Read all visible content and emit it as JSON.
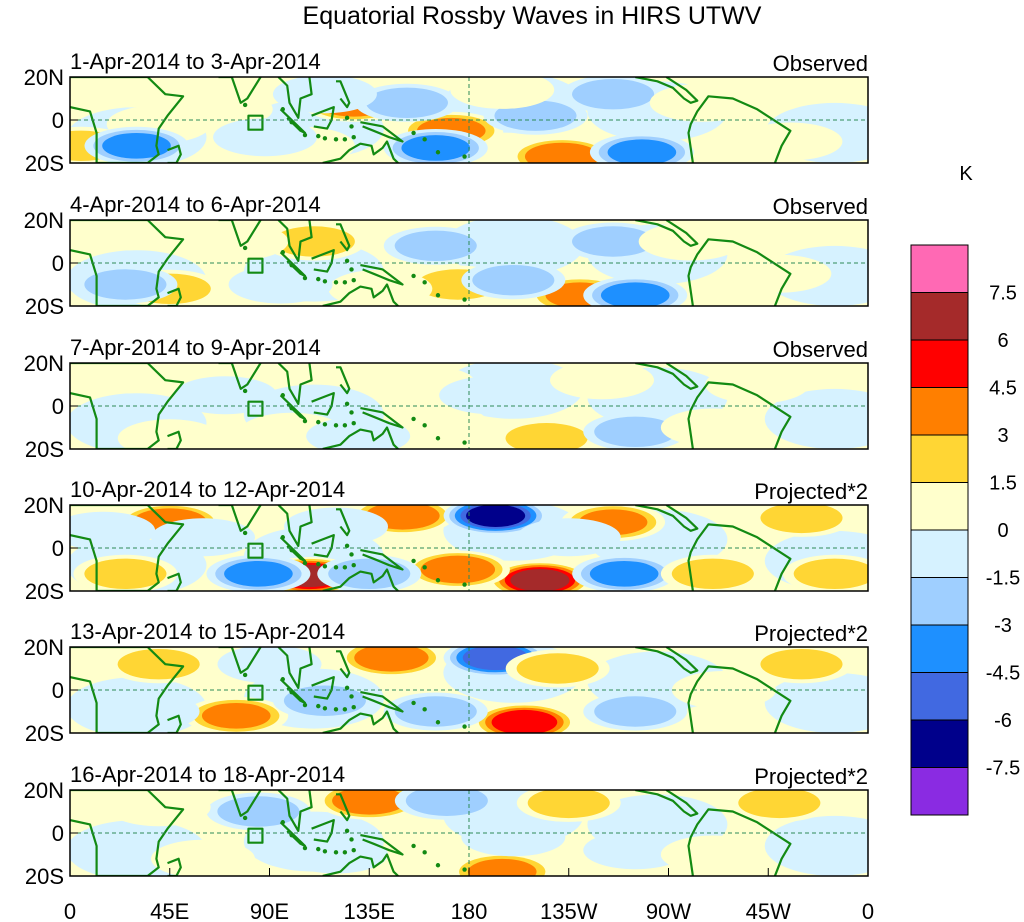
{
  "chart_data": {
    "type": "heatmap",
    "title": "Equatorial Rossby Waves in HIRS UTWV",
    "units": "K",
    "lat_ticks": [
      "20N",
      "0",
      "20S"
    ],
    "lon_ticks": [
      "0",
      "45E",
      "90E",
      "135E",
      "180",
      "135W",
      "90W",
      "45W",
      "0"
    ],
    "lon_range": [
      0,
      360
    ],
    "lat_range": [
      -20,
      20
    ],
    "colorbar": {
      "levels": [
        -7.5,
        -6,
        -4.5,
        -3,
        -1.5,
        0,
        1.5,
        3,
        4.5,
        6,
        7.5
      ],
      "tick_labels": [
        "7.5",
        "6",
        "4.5",
        "3",
        "1.5",
        "0",
        "-1.5",
        "-3",
        "-4.5",
        "-6",
        "-7.5"
      ],
      "colors": [
        "#8a2be2",
        "#00008b",
        "#4169e1",
        "#1e90ff",
        "#9fcfff",
        "#d6f2ff",
        "#ffffcc",
        "#ffd634",
        "#ff7f00",
        "#ff0000",
        "#a52a2a",
        "#ff69b4"
      ]
    },
    "panels": [
      {
        "date_range": "1-Apr-2014 to 3-Apr-2014",
        "kind": "Observed",
        "blobs": [
          {
            "lon": 128,
            "lat": 8,
            "v": 5
          },
          {
            "lon": 172,
            "lat": -5,
            "v": 4
          },
          {
            "lon": 222,
            "lat": -17,
            "v": 5
          },
          {
            "lon": 105,
            "lat": -12,
            "v": 2
          },
          {
            "lon": 40,
            "lat": -2,
            "v": 2
          },
          {
            "lon": 5,
            "lat": -12,
            "v": 3
          },
          {
            "lon": 152,
            "lat": 8,
            "v": -3
          },
          {
            "lon": 165,
            "lat": -13,
            "v": -4
          },
          {
            "lon": 245,
            "lat": 12,
            "v": -3
          },
          {
            "lon": 210,
            "lat": 2,
            "v": -3
          },
          {
            "lon": 30,
            "lat": -12,
            "v": -4
          },
          {
            "lon": 258,
            "lat": -15,
            "v": -4
          },
          {
            "lon": 195,
            "lat": 14,
            "v": 2
          },
          {
            "lon": 68,
            "lat": 5,
            "v": 2
          },
          {
            "lon": 325,
            "lat": -10,
            "v": 2
          },
          {
            "lon": 88,
            "lat": -8,
            "v": -2
          },
          {
            "lon": 115,
            "lat": 12,
            "v": -2
          },
          {
            "lon": 285,
            "lat": 8,
            "v": 2
          }
        ]
      },
      {
        "date_range": "4-Apr-2014 to 6-Apr-2014",
        "kind": "Observed",
        "blobs": [
          {
            "lon": 110,
            "lat": 10,
            "v": 3
          },
          {
            "lon": 175,
            "lat": -10,
            "v": 3
          },
          {
            "lon": 230,
            "lat": -15,
            "v": 4
          },
          {
            "lon": 165,
            "lat": 8,
            "v": -3
          },
          {
            "lon": 45,
            "lat": -12,
            "v": 3
          },
          {
            "lon": 25,
            "lat": -10,
            "v": -3
          },
          {
            "lon": 255,
            "lat": -15,
            "v": -4
          },
          {
            "lon": 245,
            "lat": 10,
            "v": -3
          },
          {
            "lon": 200,
            "lat": -8,
            "v": -3
          },
          {
            "lon": 140,
            "lat": -12,
            "v": 2
          },
          {
            "lon": 280,
            "lat": 10,
            "v": 2
          },
          {
            "lon": 75,
            "lat": 10,
            "v": 2
          },
          {
            "lon": 320,
            "lat": -5,
            "v": 2
          },
          {
            "lon": 95,
            "lat": -10,
            "v": -2
          }
        ]
      },
      {
        "date_range": "7-Apr-2014 to 9-Apr-2014",
        "kind": "Observed",
        "blobs": [
          {
            "lon": 100,
            "lat": -12,
            "v": 2
          },
          {
            "lon": 165,
            "lat": -8,
            "v": 2
          },
          {
            "lon": 215,
            "lat": -15,
            "v": 3
          },
          {
            "lon": 160,
            "lat": 10,
            "v": 2
          },
          {
            "lon": 190,
            "lat": 5,
            "v": -2
          },
          {
            "lon": 255,
            "lat": -12,
            "v": -3
          },
          {
            "lon": 45,
            "lat": -15,
            "v": 2
          },
          {
            "lon": 130,
            "lat": -14,
            "v": -2
          },
          {
            "lon": 240,
            "lat": 12,
            "v": 2
          },
          {
            "lon": 310,
            "lat": 10,
            "v": 2
          },
          {
            "lon": 70,
            "lat": 5,
            "v": -2
          },
          {
            "lon": 290,
            "lat": -10,
            "v": 2
          }
        ]
      },
      {
        "date_range": "10-Apr-2014 to 12-Apr-2014",
        "kind": "Projected*2",
        "blobs": [
          {
            "lon": 45,
            "lat": 12,
            "v": 5
          },
          {
            "lon": 108,
            "lat": -13,
            "v": 7
          },
          {
            "lon": 150,
            "lat": 15,
            "v": 5
          },
          {
            "lon": 192,
            "lat": 15,
            "v": -7
          },
          {
            "lon": 212,
            "lat": -15,
            "v": 7
          },
          {
            "lon": 175,
            "lat": -10,
            "v": 5
          },
          {
            "lon": 245,
            "lat": 12,
            "v": 4
          },
          {
            "lon": 85,
            "lat": -12,
            "v": -4
          },
          {
            "lon": 135,
            "lat": -12,
            "v": -3
          },
          {
            "lon": 250,
            "lat": -12,
            "v": -4
          },
          {
            "lon": 25,
            "lat": -12,
            "v": 3
          },
          {
            "lon": 330,
            "lat": 14,
            "v": 3
          },
          {
            "lon": 15,
            "lat": 8,
            "v": -2
          },
          {
            "lon": 290,
            "lat": -12,
            "v": 3
          },
          {
            "lon": 345,
            "lat": -12,
            "v": 3
          },
          {
            "lon": 60,
            "lat": 5,
            "v": -2
          },
          {
            "lon": 120,
            "lat": 10,
            "v": -2
          },
          {
            "lon": 225,
            "lat": 5,
            "v": -2
          }
        ]
      },
      {
        "date_range": "13-Apr-2014 to 15-Apr-2014",
        "kind": "Projected*2",
        "blobs": [
          {
            "lon": 145,
            "lat": 15,
            "v": 5
          },
          {
            "lon": 192,
            "lat": 15,
            "v": -6
          },
          {
            "lon": 205,
            "lat": -15,
            "v": 6
          },
          {
            "lon": 40,
            "lat": 12,
            "v": 3
          },
          {
            "lon": 75,
            "lat": -12,
            "v": 4
          },
          {
            "lon": 220,
            "lat": 10,
            "v": 3
          },
          {
            "lon": 330,
            "lat": 12,
            "v": 3
          },
          {
            "lon": 115,
            "lat": -5,
            "v": -3
          },
          {
            "lon": 165,
            "lat": -10,
            "v": -3
          },
          {
            "lon": 255,
            "lat": -10,
            "v": -3
          },
          {
            "lon": 35,
            "lat": -10,
            "v": -2
          },
          {
            "lon": 295,
            "lat": 0,
            "v": 2
          },
          {
            "lon": 90,
            "lat": 12,
            "v": -2
          }
        ]
      },
      {
        "date_range": "16-Apr-2014 to 18-Apr-2014",
        "kind": "Projected*2",
        "blobs": [
          {
            "lon": 135,
            "lat": 15,
            "v": 5
          },
          {
            "lon": 195,
            "lat": -18,
            "v": 4
          },
          {
            "lon": 85,
            "lat": 10,
            "v": -3
          },
          {
            "lon": 170,
            "lat": 15,
            "v": -3
          },
          {
            "lon": 225,
            "lat": 14,
            "v": 3
          },
          {
            "lon": 320,
            "lat": 14,
            "v": 3
          },
          {
            "lon": 40,
            "lat": 12,
            "v": 2
          },
          {
            "lon": 200,
            "lat": -2,
            "v": -2
          },
          {
            "lon": 255,
            "lat": -8,
            "v": -2
          },
          {
            "lon": 60,
            "lat": -12,
            "v": 2
          },
          {
            "lon": 290,
            "lat": -10,
            "v": 2
          },
          {
            "lon": 120,
            "lat": -10,
            "v": -2
          }
        ]
      }
    ]
  }
}
